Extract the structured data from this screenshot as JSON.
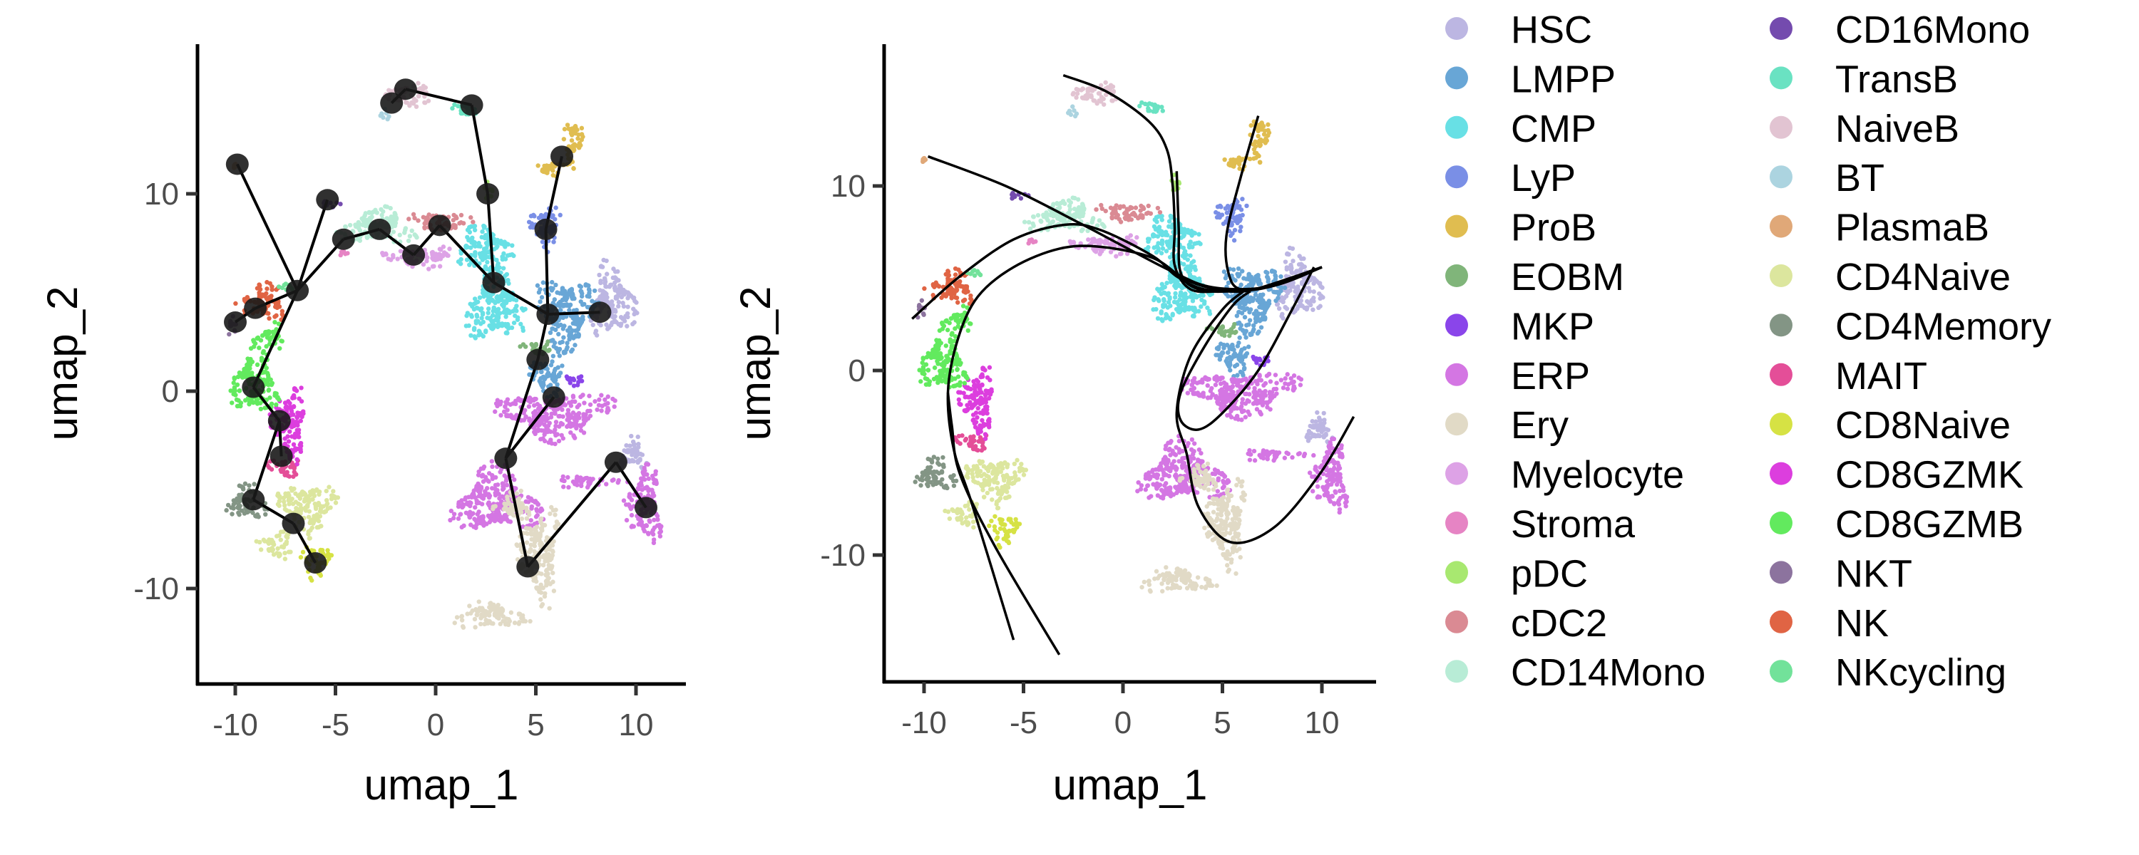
{
  "chart_data": [
    {
      "type": "scatter",
      "panel": "left",
      "overlay": "trajectory-graph",
      "xlabel": "umap_1",
      "ylabel": "umap_2",
      "xticks": [
        "-10",
        "-5",
        "0",
        "5",
        "10"
      ],
      "yticks": [
        "-10",
        "0",
        "10"
      ],
      "xlim": [
        -12,
        12.5
      ],
      "ylim": [
        -15,
        17
      ],
      "grid": false,
      "nodes": [
        [
          -9.9,
          11.5
        ],
        [
          -5.4,
          9.7
        ],
        [
          -4.6,
          7.7
        ],
        [
          -2.8,
          8.2
        ],
        [
          -1.1,
          6.9
        ],
        [
          0.2,
          8.4
        ],
        [
          -6.9,
          5.1
        ],
        [
          -9.0,
          4.2
        ],
        [
          -10.0,
          3.5
        ],
        [
          -9.1,
          0.2
        ],
        [
          -7.8,
          -1.5
        ],
        [
          -7.7,
          -3.3
        ],
        [
          -9.1,
          -5.5
        ],
        [
          -7.1,
          -6.7
        ],
        [
          -6.0,
          -8.7
        ],
        [
          -2.2,
          14.6
        ],
        [
          -1.5,
          15.3
        ],
        [
          1.8,
          14.5
        ],
        [
          2.6,
          10.0
        ],
        [
          2.9,
          5.5
        ],
        [
          5.6,
          3.9
        ],
        [
          8.2,
          4.0
        ],
        [
          5.5,
          8.2
        ],
        [
          6.3,
          11.9
        ],
        [
          5.1,
          1.6
        ],
        [
          5.9,
          -0.3
        ],
        [
          3.5,
          -3.4
        ],
        [
          4.6,
          -8.9
        ],
        [
          9.0,
          -3.6
        ],
        [
          10.5,
          -5.9
        ]
      ],
      "edges": [
        [
          0,
          6
        ],
        [
          6,
          1
        ],
        [
          6,
          2
        ],
        [
          2,
          3
        ],
        [
          3,
          4
        ],
        [
          4,
          5
        ],
        [
          5,
          19
        ],
        [
          8,
          7
        ],
        [
          7,
          6
        ],
        [
          6,
          9
        ],
        [
          9,
          10
        ],
        [
          10,
          11
        ],
        [
          10,
          12
        ],
        [
          12,
          13
        ],
        [
          13,
          14
        ],
        [
          15,
          16
        ],
        [
          16,
          17
        ],
        [
          17,
          18
        ],
        [
          18,
          19
        ],
        [
          19,
          20
        ],
        [
          20,
          21
        ],
        [
          20,
          22
        ],
        [
          22,
          23
        ],
        [
          20,
          24
        ],
        [
          24,
          26
        ],
        [
          26,
          25
        ],
        [
          26,
          27
        ],
        [
          27,
          28
        ],
        [
          28,
          29
        ]
      ]
    },
    {
      "type": "scatter",
      "panel": "right",
      "overlay": "principal-curves",
      "xlabel": "umap_1",
      "ylabel": "umap_2",
      "xticks": [
        "-10",
        "-5",
        "0",
        "5",
        "10"
      ],
      "yticks": [
        "-10",
        "0",
        "10"
      ],
      "xlim": [
        -11,
        12.8
      ],
      "ylim": [
        -16.8,
        17.5
      ],
      "grid": false,
      "curves": [
        [
          [
            -9.8,
            11.6
          ],
          [
            -5.9,
            10.0
          ],
          [
            -2.2,
            8.0
          ],
          [
            0.6,
            6.4
          ],
          [
            2.4,
            5.4
          ],
          [
            4.1,
            4.6
          ],
          [
            5.9,
            4.4
          ],
          [
            7.6,
            4.6
          ],
          [
            10.0,
            5.6
          ]
        ],
        [
          [
            -3.0,
            16.0
          ],
          [
            -0.8,
            15.1
          ],
          [
            1.3,
            13.5
          ],
          [
            2.2,
            12.0
          ],
          [
            2.5,
            10.0
          ],
          [
            2.6,
            7.7
          ],
          [
            2.6,
            5.7
          ],
          [
            3.4,
            4.4
          ],
          [
            5.0,
            4.3
          ],
          [
            6.6,
            4.4
          ],
          [
            10.0,
            5.6
          ]
        ],
        [
          [
            2.7,
            10.8
          ],
          [
            2.8,
            7.7
          ],
          [
            2.9,
            5.3
          ],
          [
            3.8,
            4.4
          ],
          [
            5.6,
            4.3
          ],
          [
            7.6,
            4.6
          ],
          [
            10.0,
            5.6
          ]
        ],
        [
          [
            6.8,
            13.8
          ],
          [
            5.9,
            10.4
          ],
          [
            5.2,
            7.3
          ],
          [
            5.3,
            5.3
          ],
          [
            5.9,
            4.4
          ],
          [
            7.6,
            4.6
          ],
          [
            10.0,
            5.6
          ]
        ],
        [
          [
            -10.6,
            2.8
          ],
          [
            -8.2,
            5.1
          ],
          [
            -5.5,
            7.1
          ],
          [
            -2.9,
            7.9
          ],
          [
            -1.1,
            7.6
          ],
          [
            1.5,
            6.2
          ],
          [
            2.7,
            5.1
          ],
          [
            4.1,
            4.4
          ],
          [
            5.9,
            4.4
          ],
          [
            7.6,
            4.6
          ],
          [
            10.0,
            5.6
          ]
        ],
        [
          [
            -5.5,
            -14.6
          ],
          [
            -7.6,
            -7.2
          ],
          [
            -8.5,
            -4.3
          ],
          [
            -8.8,
            -1.2
          ],
          [
            -8.3,
            1.7
          ],
          [
            -7.3,
            4.0
          ],
          [
            -5.5,
            5.6
          ],
          [
            -3.2,
            6.6
          ],
          [
            -1.1,
            6.7
          ],
          [
            1.5,
            6.1
          ],
          [
            3.2,
            4.9
          ],
          [
            5.0,
            4.4
          ],
          [
            7.6,
            4.6
          ],
          [
            10.0,
            5.6
          ]
        ],
        [
          [
            -3.2,
            -15.4
          ],
          [
            -6.4,
            -9.6
          ],
          [
            -8.2,
            -5.6
          ],
          [
            -8.6,
            -3.0
          ],
          [
            -8.8,
            -1.2
          ]
        ],
        [
          [
            9.6,
            5.6
          ],
          [
            8.5,
            3.3
          ],
          [
            6.8,
            0.0
          ],
          [
            5.0,
            -2.3
          ],
          [
            3.8,
            -3.2
          ],
          [
            2.9,
            -2.7
          ],
          [
            2.9,
            -1.2
          ],
          [
            4.1,
            1.3
          ],
          [
            5.5,
            3.5
          ],
          [
            6.4,
            4.3
          ]
        ],
        [
          [
            6.2,
            4.4
          ],
          [
            5.0,
            3.3
          ],
          [
            3.4,
            0.8
          ],
          [
            2.7,
            -2.3
          ],
          [
            3.2,
            -4.5
          ],
          [
            3.8,
            -7.4
          ],
          [
            5.4,
            -9.3
          ],
          [
            7.6,
            -8.5
          ],
          [
            9.9,
            -5.6
          ],
          [
            11.6,
            -2.5
          ]
        ]
      ]
    }
  ],
  "legend": {
    "placement": "right",
    "items": [
      {
        "name": "HSC",
        "color": "#BCB6E2",
        "blobs": [
          [
            8.8,
            4.5,
            1.2,
            2.0
          ],
          [
            9.8,
            -3.2,
            0.8,
            0.9
          ]
        ]
      },
      {
        "name": "LMPP",
        "color": "#68A6D6",
        "blobs": [
          [
            6.5,
            4.0,
            1.6,
            2.0
          ],
          [
            5.6,
            0.8,
            0.9,
            1.2
          ]
        ]
      },
      {
        "name": "CMP",
        "color": "#68E0E5",
        "blobs": [
          [
            3.0,
            4.5,
            1.5,
            2.3
          ],
          [
            2.4,
            7.3,
            1.5,
            1.1
          ]
        ]
      },
      {
        "name": "LyP",
        "color": "#7A8FE6",
        "blobs": [
          [
            5.5,
            8.3,
            0.8,
            1.2
          ]
        ]
      },
      {
        "name": "ProB",
        "color": "#E0BD50",
        "blobs": [
          [
            6.8,
            12.6,
            0.5,
            1.4
          ],
          [
            5.7,
            11.2,
            0.8,
            0.5
          ]
        ]
      },
      {
        "name": "EOBM",
        "color": "#80B57A",
        "blobs": [
          [
            5.2,
            2.2,
            0.9,
            0.4
          ]
        ]
      },
      {
        "name": "MKP",
        "color": "#8A45EA",
        "blobs": [
          [
            7.0,
            0.6,
            0.6,
            0.4
          ]
        ]
      },
      {
        "name": "ERP",
        "color": "#D476E3",
        "blobs": [
          [
            6.0,
            -1.2,
            3.0,
            1.3
          ],
          [
            3.0,
            -5.6,
            2.3,
            1.8
          ],
          [
            10.4,
            -5.8,
            1.0,
            2.0
          ],
          [
            7.6,
            -4.6,
            1.8,
            0.3
          ]
        ]
      },
      {
        "name": "Ery",
        "color": "#E1DAC6",
        "blobs": [
          [
            5.2,
            -8.3,
            1.1,
            2.6
          ],
          [
            2.6,
            -11.4,
            2.0,
            0.7
          ],
          [
            3.8,
            -5.8,
            1.0,
            0.8
          ]
        ]
      },
      {
        "name": "Myelocyte",
        "color": "#DDA2E6",
        "blobs": [
          [
            -0.8,
            6.8,
            2.0,
            0.6
          ]
        ]
      },
      {
        "name": "Stroma",
        "color": "#E684C4",
        "blobs": [
          [
            -4.6,
            7.0,
            0.2,
            0.2
          ]
        ]
      },
      {
        "name": "pDC",
        "color": "#A8E870",
        "blobs": [
          [
            2.6,
            10.1,
            0.3,
            0.5
          ]
        ]
      },
      {
        "name": "cDC2",
        "color": "#DA8A93",
        "blobs": [
          [
            0.3,
            8.6,
            1.8,
            0.5
          ]
        ]
      },
      {
        "name": "CD14Mono",
        "color": "#B8ECD6",
        "blobs": [
          [
            -2.9,
            8.3,
            2.0,
            1.0
          ]
        ]
      },
      {
        "name": "CD16Mono",
        "color": "#744BAE",
        "blobs": [
          [
            -5.3,
            9.4,
            0.5,
            0.3
          ]
        ]
      },
      {
        "name": "TransB",
        "color": "#6AE2C2",
        "blobs": [
          [
            1.5,
            14.2,
            1.0,
            0.35
          ]
        ]
      },
      {
        "name": "NaiveB",
        "color": "#E2C4D2",
        "blobs": [
          [
            -1.4,
            15.0,
            1.5,
            0.6
          ]
        ]
      },
      {
        "name": "BT",
        "color": "#ACD4E0",
        "blobs": [
          [
            -2.6,
            14.0,
            0.3,
            0.3
          ]
        ]
      },
      {
        "name": "PlasmaB",
        "color": "#E0A878",
        "blobs": [
          [
            -10.0,
            11.4,
            0.15,
            0.15
          ]
        ]
      },
      {
        "name": "CD4Naive",
        "color": "#DCE69E",
        "blobs": [
          [
            -6.4,
            -5.9,
            1.5,
            1.4
          ],
          [
            -8.0,
            -7.8,
            1.0,
            0.7
          ]
        ]
      },
      {
        "name": "CD4Memory",
        "color": "#839585",
        "blobs": [
          [
            -9.4,
            -5.6,
            1.0,
            1.0
          ]
        ]
      },
      {
        "name": "MAIT",
        "color": "#E44E98",
        "blobs": [
          [
            -7.5,
            -3.8,
            0.9,
            0.6
          ]
        ]
      },
      {
        "name": "CD8Naive",
        "color": "#D6E244",
        "blobs": [
          [
            -6.0,
            -8.6,
            0.8,
            0.9
          ]
        ]
      },
      {
        "name": "CD8GZMK",
        "color": "#DC3EDE",
        "blobs": [
          [
            -7.3,
            -1.6,
            0.9,
            2.0
          ]
        ]
      },
      {
        "name": "CD8GZMB",
        "color": "#62EA5E",
        "blobs": [
          [
            -9.0,
            0.5,
            1.2,
            2.0
          ],
          [
            -8.2,
            2.8,
            0.7,
            0.7
          ]
        ]
      },
      {
        "name": "NKT",
        "color": "#8C739E",
        "blobs": [
          [
            -10.1,
            3.3,
            0.3,
            0.5
          ]
        ]
      },
      {
        "name": "NK",
        "color": "#E06444",
        "blobs": [
          [
            -8.6,
            4.5,
            1.3,
            1.0
          ]
        ]
      },
      {
        "name": "NKcycling",
        "color": "#72E29A",
        "blobs": [
          [
            -7.5,
            5.3,
            0.5,
            0.25
          ]
        ]
      }
    ]
  }
}
